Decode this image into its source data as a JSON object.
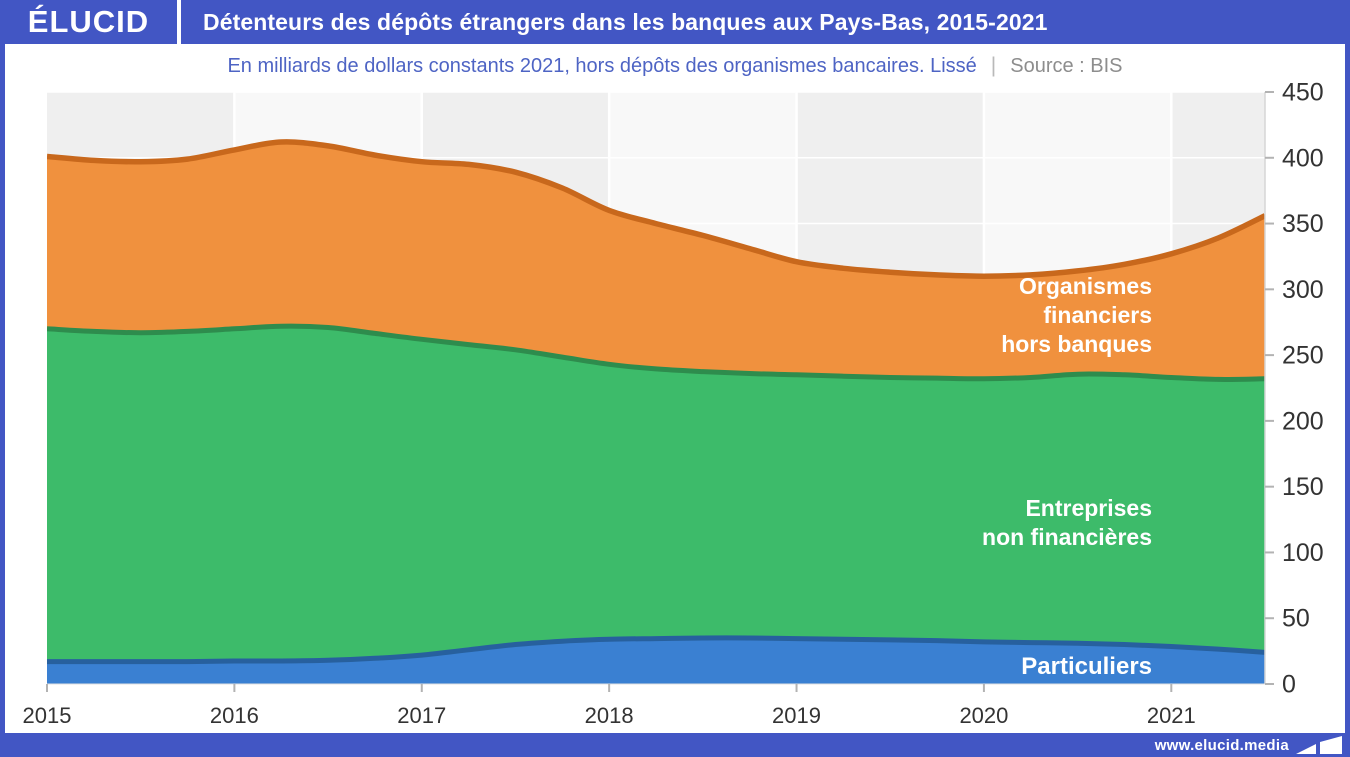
{
  "header": {
    "logo": "ÉLUCID",
    "title": "Détenteurs des dépôts étrangers dans les banques aux Pays-Bas, 2015-2021"
  },
  "subtitle": {
    "description": "En milliards de dollars constants 2021, hors dépôts des organismes bancaires. Lissé",
    "separator": "|",
    "source": "Source : BIS"
  },
  "footer": {
    "url": "www.elucid.media"
  },
  "colors": {
    "frame_blue": "#4256c4",
    "subtitle_blue": "#4e64c4",
    "source_gray": "#8d8d8d",
    "axis_text": "#333333",
    "band_gray": "#efefef",
    "band_light": "#f8f8f8",
    "tick_gray": "#b3b3b3"
  },
  "chart_data": {
    "type": "area",
    "stacked": true,
    "title": "Détenteurs des dépôts étrangers dans les banques aux Pays-Bas, 2015-2021",
    "subtitle": "En milliards de dollars constants 2021, hors dépôts des organismes bancaires. Lissé",
    "source": "Source : BIS",
    "unit": "milliards de dollars constants 2021",
    "xlim": [
      2015,
      2021.5
    ],
    "ylim": [
      0,
      450
    ],
    "grid": true,
    "legend_position": "inside-right",
    "xticks": [
      2015,
      2016,
      2017,
      2018,
      2019,
      2020,
      2021
    ],
    "yticks": [
      0,
      50,
      100,
      150,
      200,
      250,
      300,
      350,
      400,
      450
    ],
    "x": [
      2015,
      2015.25,
      2015.5,
      2015.75,
      2016,
      2016.25,
      2016.5,
      2016.75,
      2017,
      2017.25,
      2017.5,
      2017.75,
      2018,
      2018.25,
      2018.5,
      2018.75,
      2019,
      2019.25,
      2019.5,
      2019.75,
      2020,
      2020.25,
      2020.5,
      2020.75,
      2021,
      2021.25,
      2021.5
    ],
    "series": [
      {
        "name": "Particuliers",
        "label": "Particuliers",
        "fill": "#3a80d2",
        "stroke": "#27609e",
        "values": [
          17,
          17,
          17,
          17,
          17.5,
          17.5,
          18,
          19.5,
          22,
          26,
          30,
          32.5,
          34,
          34.5,
          35,
          35,
          34.5,
          34,
          33.5,
          33,
          32,
          31.5,
          31,
          30,
          28.5,
          26.5,
          24
        ]
      },
      {
        "name": "Entreprises non financières",
        "label": "Entreprises\nnon financières",
        "fill": "#3dbb6a",
        "stroke": "#2e8c4d",
        "values": [
          253,
          251,
          250,
          251,
          252.5,
          254.5,
          253,
          247,
          240,
          232,
          224,
          216,
          209,
          205,
          202.5,
          201,
          200.5,
          200,
          199.5,
          199.5,
          200,
          201.5,
          204.5,
          205,
          204.5,
          205,
          208
        ]
      },
      {
        "name": "Organismes financiers hors banques",
        "label": "Organismes\nfinanciers\nhors banques",
        "fill": "#f0913e",
        "stroke": "#c8681c",
        "values": [
          131,
          130,
          130,
          131,
          136,
          140,
          138,
          135.5,
          135,
          137,
          135,
          128.5,
          117,
          110.5,
          103.5,
          95,
          86,
          82,
          80,
          78.5,
          78,
          78,
          78.5,
          84,
          94,
          107.5,
          124
        ]
      }
    ]
  }
}
